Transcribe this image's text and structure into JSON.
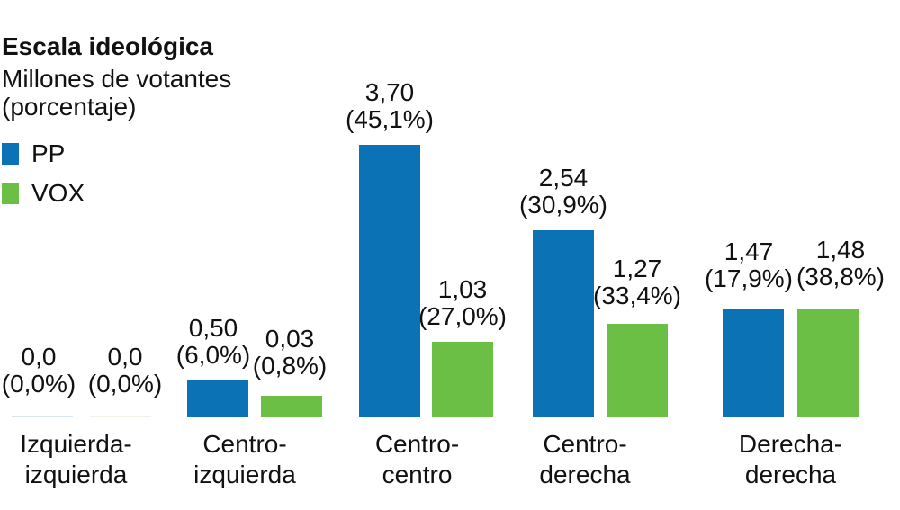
{
  "page": {
    "background": "#ffffff",
    "text_color": "#111111"
  },
  "chart_data": {
    "type": "bar",
    "title": "Escala ideológica",
    "subtitle": "Millones de votantes (porcentaje)",
    "unit": "millones de votantes",
    "grid": false,
    "legend_position": "top-left",
    "ylim": [
      0,
      3.7
    ],
    "categories": [
      "Izquierda-izquierda",
      "Centro-izquierda",
      "Centro-centro",
      "Centro-derecha",
      "Derecha-derecha"
    ],
    "series": [
      {
        "name": "PP",
        "color": "#0b72b6",
        "zero_color": "#d6e6f2",
        "values": [
          0.0,
          0.5,
          3.7,
          2.54,
          1.47
        ],
        "percentages": [
          0.0,
          6.0,
          45.1,
          30.9,
          17.9
        ],
        "value_labels": [
          "0,0",
          "0,50",
          "3,70",
          "2,54",
          "1,47"
        ],
        "pct_labels": [
          "(0,0%)",
          "(6,0%)",
          "(45,1%)",
          "(30,9%)",
          "(17,9%)"
        ]
      },
      {
        "name": "VOX",
        "color": "#6cbf45",
        "zero_color": "#f1f2e6",
        "values": [
          0.0,
          0.03,
          1.03,
          1.27,
          1.48
        ],
        "percentages": [
          0.0,
          0.8,
          27.0,
          33.4,
          38.8
        ],
        "value_labels": [
          "0,0",
          "0,03",
          "1,03",
          "1,27",
          "1,48"
        ],
        "pct_labels": [
          "(0,0%)",
          "(0,8%)",
          "(27,0%)",
          "(33,4%)",
          "(38,8%)"
        ]
      }
    ]
  }
}
